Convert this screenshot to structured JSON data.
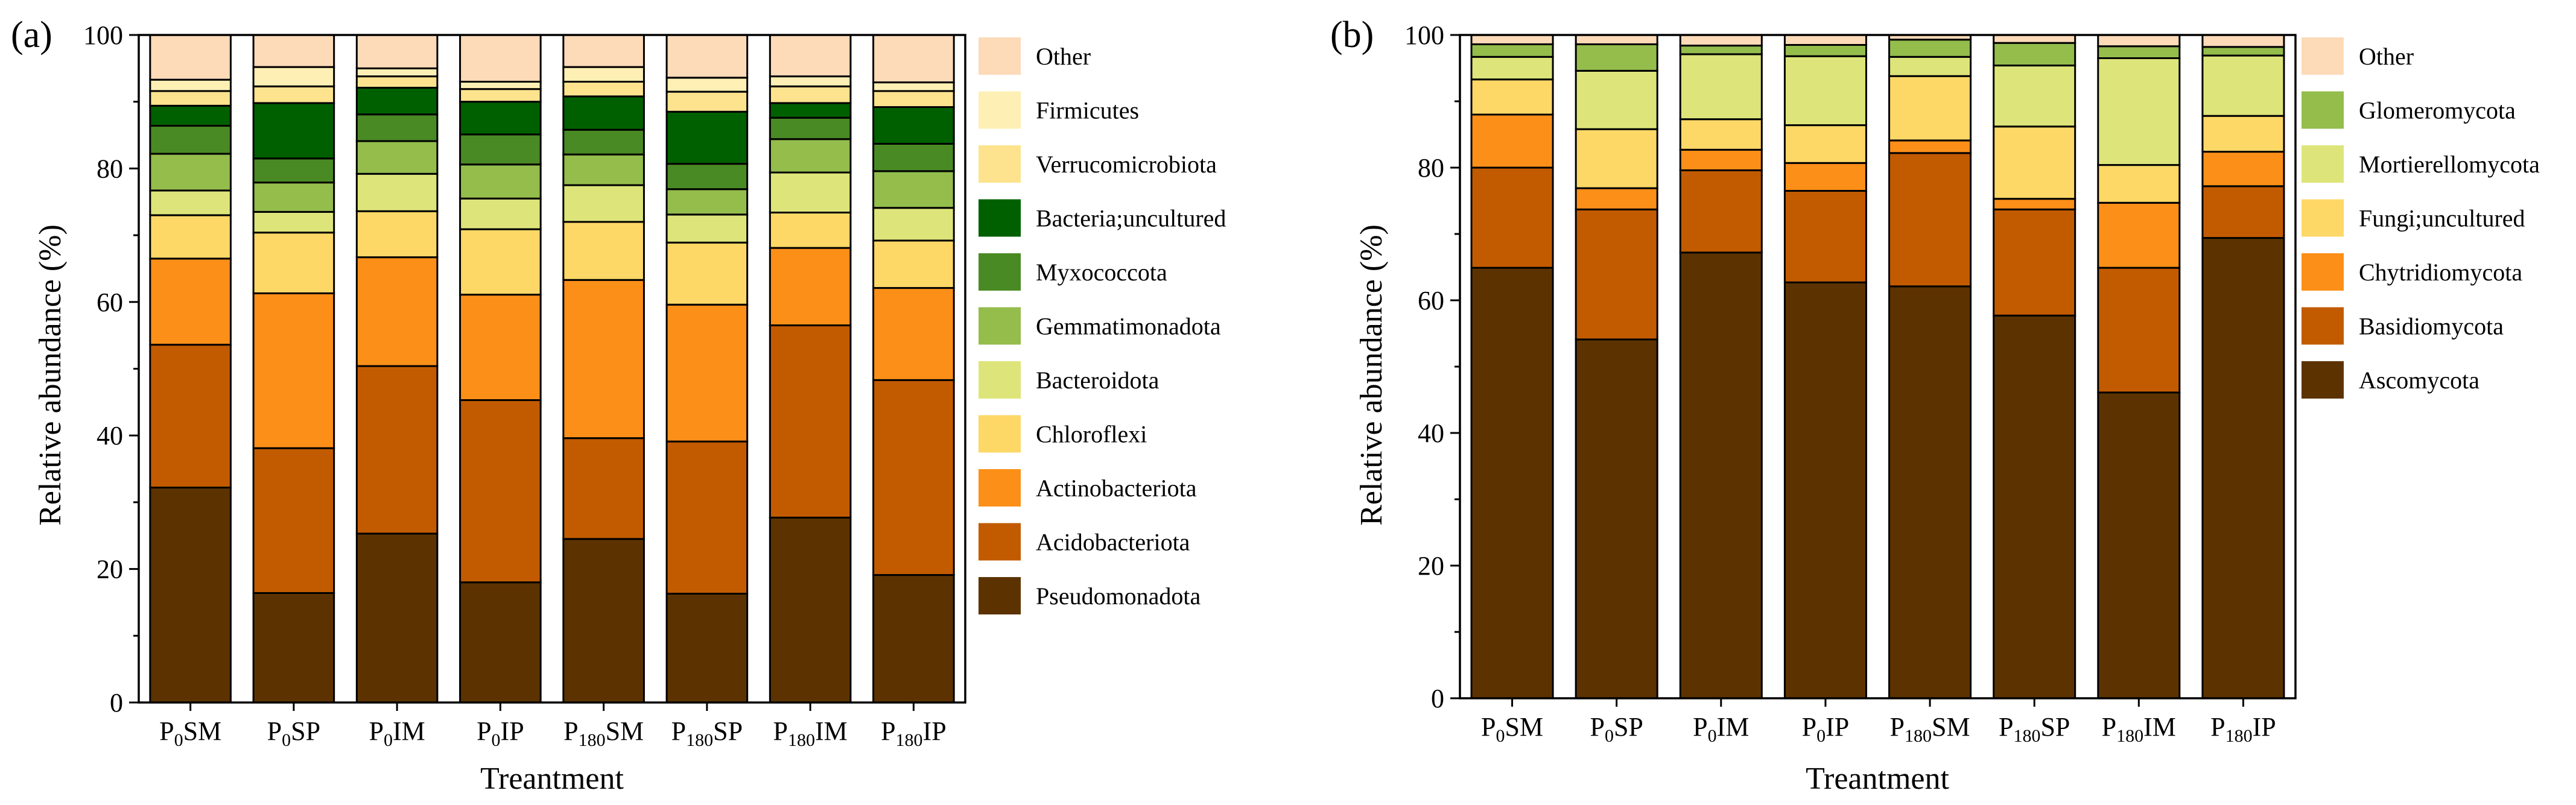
{
  "chart_data": [
    {
      "type": "bar",
      "stacked": true,
      "panel_label": "(a)",
      "xlabel": "Treantment",
      "ylabel": "Relative abundance (%)",
      "ylim": [
        0,
        100
      ],
      "yticks": [
        0,
        20,
        40,
        60,
        80,
        100
      ],
      "categories": [
        {
          "main": "P",
          "sub": "0",
          "rest": "SM"
        },
        {
          "main": "P",
          "sub": "0",
          "rest": "SP"
        },
        {
          "main": "P",
          "sub": "0",
          "rest": "IM"
        },
        {
          "main": "P",
          "sub": "0",
          "rest": "IP"
        },
        {
          "main": "P",
          "sub": "180",
          "rest": "SM"
        },
        {
          "main": "P",
          "sub": "180",
          "rest": "SP"
        },
        {
          "main": "P",
          "sub": "180",
          "rest": "IM"
        },
        {
          "main": "P",
          "sub": "180",
          "rest": "IP"
        }
      ],
      "series": [
        {
          "name": "Pseudomonadota",
          "color": "#5c3300",
          "values": [
            32.2,
            16.4,
            25.3,
            18.0,
            24.5,
            16.3,
            27.7,
            19.1
          ]
        },
        {
          "name": "Acidobacteriota",
          "color": "#c25b00",
          "values": [
            21.4,
            21.7,
            25.1,
            27.3,
            15.1,
            22.8,
            28.8,
            29.2
          ]
        },
        {
          "name": "Actinobacteriota",
          "color": "#fb8f18",
          "values": [
            12.9,
            23.2,
            16.3,
            15.8,
            23.7,
            20.5,
            11.6,
            13.8
          ]
        },
        {
          "name": "Chloroflexi",
          "color": "#fdd866",
          "values": [
            6.5,
            9.1,
            6.9,
            9.8,
            8.7,
            9.3,
            5.3,
            7.1
          ]
        },
        {
          "name": "Bacteroidota",
          "color": "#dde57a",
          "values": [
            3.7,
            3.1,
            5.6,
            4.6,
            5.5,
            4.2,
            6.0,
            4.9
          ]
        },
        {
          "name": "Gemmatimonadota",
          "color": "#94bd4c",
          "values": [
            5.5,
            4.4,
            4.9,
            5.1,
            4.6,
            3.8,
            5.0,
            5.5
          ]
        },
        {
          "name": "Myxococcota",
          "color": "#4a8a24",
          "values": [
            4.2,
            3.6,
            4.0,
            4.5,
            3.7,
            3.8,
            3.2,
            4.1
          ]
        },
        {
          "name": "Bacteria;uncultured",
          "color": "#006000",
          "values": [
            3.0,
            8.3,
            4.0,
            4.9,
            5.0,
            7.8,
            2.2,
            5.5
          ]
        },
        {
          "name": "Verrucomicrobiota",
          "color": "#fde38e",
          "values": [
            2.2,
            2.5,
            1.7,
            1.9,
            2.2,
            3.0,
            2.5,
            2.4
          ]
        },
        {
          "name": "Firmicutes",
          "color": "#fef0b4",
          "values": [
            1.7,
            2.9,
            1.2,
            1.1,
            2.2,
            2.1,
            1.5,
            1.3
          ]
        },
        {
          "name": "Other",
          "color": "#fddab8",
          "values": [
            6.7,
            4.8,
            5.0,
            7.0,
            4.8,
            6.4,
            6.2,
            7.1
          ]
        }
      ]
    },
    {
      "type": "bar",
      "stacked": true,
      "panel_label": "(b)",
      "xlabel": "Treantment",
      "ylabel": "Relative abundance (%)",
      "ylim": [
        0,
        100
      ],
      "yticks": [
        0,
        20,
        40,
        60,
        80,
        100
      ],
      "categories": [
        {
          "main": "P",
          "sub": "0",
          "rest": "SM"
        },
        {
          "main": "P",
          "sub": "0",
          "rest": "SP"
        },
        {
          "main": "P",
          "sub": "0",
          "rest": "IM"
        },
        {
          "main": "P",
          "sub": "0",
          "rest": "IP"
        },
        {
          "main": "P",
          "sub": "180",
          "rest": "SM"
        },
        {
          "main": "P",
          "sub": "180",
          "rest": "SP"
        },
        {
          "main": "P",
          "sub": "180",
          "rest": "IM"
        },
        {
          "main": "P",
          "sub": "180",
          "rest": "IP"
        }
      ],
      "series": [
        {
          "name": "Ascomycota",
          "color": "#5c3300",
          "values": [
            64.9,
            54.1,
            67.2,
            62.7,
            62.1,
            57.7,
            46.1,
            69.4
          ]
        },
        {
          "name": "Basidiomycota",
          "color": "#c25b00",
          "values": [
            15.1,
            19.6,
            12.4,
            13.8,
            20.1,
            16.0,
            18.8,
            7.8
          ]
        },
        {
          "name": "Chytridiomycota",
          "color": "#fb8f18",
          "values": [
            8.0,
            3.2,
            3.1,
            4.2,
            1.9,
            1.6,
            9.8,
            5.2
          ]
        },
        {
          "name": "Fungi;uncultured",
          "color": "#fdd866",
          "values": [
            5.3,
            8.9,
            4.6,
            5.7,
            9.7,
            10.9,
            5.7,
            5.4
          ]
        },
        {
          "name": "Mortierellomycota",
          "color": "#dde57a",
          "values": [
            3.4,
            8.8,
            9.8,
            10.4,
            2.9,
            9.2,
            16.1,
            9.1
          ]
        },
        {
          "name": "Glomeromycota",
          "color": "#94bd4c",
          "values": [
            1.9,
            4.0,
            1.3,
            1.7,
            2.6,
            3.4,
            1.8,
            1.3
          ]
        },
        {
          "name": "Other",
          "color": "#fddab8",
          "values": [
            1.4,
            1.4,
            1.6,
            1.5,
            0.7,
            1.2,
            1.7,
            1.8
          ]
        }
      ]
    }
  ]
}
